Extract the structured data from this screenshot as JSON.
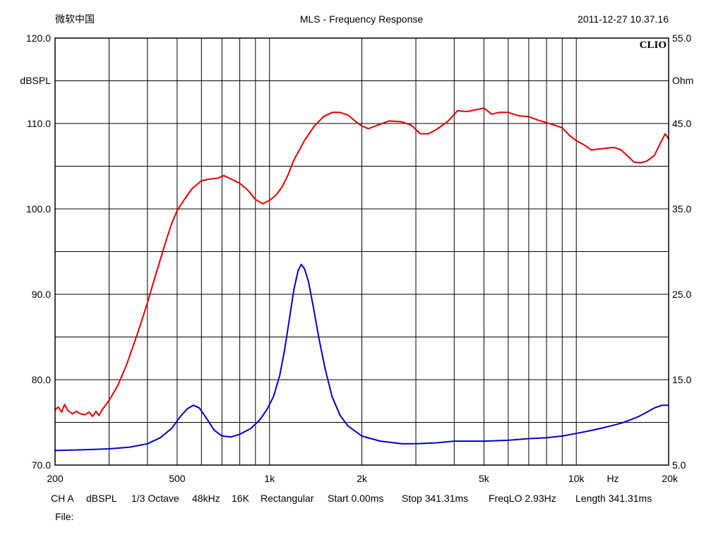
{
  "header": {
    "app_name": "微软中国",
    "title": "MLS - Frequency Response",
    "timestamp": "2011-12-27 10.37.16",
    "brand": "CLIO"
  },
  "footer": {
    "channel": "CH A",
    "unit": "dBSPL",
    "smoothing": "1/3 Octave",
    "sample_rate": "48kHz",
    "size": "16K",
    "window": "Rectangular",
    "start": "Start 0.00ms",
    "stop": "Stop 341.31ms",
    "freqlo": "FreqLO 2.93Hz",
    "length": "Length 341.31ms",
    "file_label": "File:"
  },
  "colors": {
    "spl": "#e00000",
    "impedance": "#0000cc",
    "grid": "#000000"
  },
  "chart_data": {
    "type": "line",
    "title": "MLS - Frequency Response",
    "x_scale": "log",
    "xlim": [
      200,
      20000
    ],
    "x_unit_label": "Hz",
    "x_ticks": [
      {
        "value": 200,
        "label": "200"
      },
      {
        "value": 500,
        "label": "500"
      },
      {
        "value": 1000,
        "label": "1k"
      },
      {
        "value": 2000,
        "label": "2k"
      },
      {
        "value": 5000,
        "label": "5k"
      },
      {
        "value": 10000,
        "label": "10k"
      },
      {
        "value": 20000,
        "label": "20k"
      }
    ],
    "y_left": {
      "label": "dBSPL",
      "lim": [
        70,
        120
      ],
      "ticks": [
        {
          "value": 70,
          "label": "70.0"
        },
        {
          "value": 80,
          "label": "80.0"
        },
        {
          "value": 90,
          "label": "90.0"
        },
        {
          "value": 100,
          "label": "100.0"
        },
        {
          "value": 110,
          "label": "110.0"
        },
        {
          "value": 120,
          "label": "120.0"
        }
      ]
    },
    "y_right": {
      "label": "Ohm",
      "lim": [
        5,
        55
      ],
      "ticks": [
        {
          "value": 5,
          "label": "5.0"
        },
        {
          "value": 15,
          "label": "15.0"
        },
        {
          "value": 25,
          "label": "25.0"
        },
        {
          "value": 35,
          "label": "35.0"
        },
        {
          "value": 45,
          "label": "45.0"
        },
        {
          "value": 55,
          "label": "55.0"
        }
      ]
    },
    "grid": true,
    "series": [
      {
        "axis": "left",
        "color": "#e00000",
        "points": [
          [
            200,
            76.5
          ],
          [
            205,
            76.8
          ],
          [
            210,
            76.2
          ],
          [
            215,
            77.1
          ],
          [
            220,
            76.4
          ],
          [
            228,
            76.0
          ],
          [
            235,
            76.3
          ],
          [
            242,
            76.0
          ],
          [
            250,
            75.9
          ],
          [
            258,
            76.2
          ],
          [
            265,
            75.7
          ],
          [
            272,
            76.3
          ],
          [
            278,
            75.8
          ],
          [
            285,
            76.5
          ],
          [
            295,
            77.2
          ],
          [
            305,
            78.0
          ],
          [
            320,
            79.3
          ],
          [
            340,
            81.5
          ],
          [
            360,
            84.0
          ],
          [
            380,
            86.5
          ],
          [
            400,
            89.0
          ],
          [
            420,
            91.6
          ],
          [
            440,
            94.0
          ],
          [
            460,
            96.3
          ],
          [
            480,
            98.3
          ],
          [
            500,
            99.8
          ],
          [
            530,
            101.2
          ],
          [
            560,
            102.4
          ],
          [
            600,
            103.3
          ],
          [
            640,
            103.5
          ],
          [
            680,
            103.6
          ],
          [
            710,
            103.9
          ],
          [
            750,
            103.5
          ],
          [
            800,
            103.0
          ],
          [
            850,
            102.2
          ],
          [
            900,
            101.1
          ],
          [
            950,
            100.6
          ],
          [
            1000,
            101.0
          ],
          [
            1050,
            101.6
          ],
          [
            1100,
            102.6
          ],
          [
            1150,
            104.0
          ],
          [
            1200,
            105.7
          ],
          [
            1300,
            108.0
          ],
          [
            1400,
            109.7
          ],
          [
            1500,
            110.8
          ],
          [
            1600,
            111.3
          ],
          [
            1700,
            111.3
          ],
          [
            1800,
            111.0
          ],
          [
            1900,
            110.3
          ],
          [
            2000,
            109.7
          ],
          [
            2100,
            109.4
          ],
          [
            2250,
            109.8
          ],
          [
            2450,
            110.3
          ],
          [
            2700,
            110.2
          ],
          [
            2900,
            109.8
          ],
          [
            3100,
            108.8
          ],
          [
            3300,
            108.8
          ],
          [
            3500,
            109.3
          ],
          [
            3800,
            110.2
          ],
          [
            4100,
            111.5
          ],
          [
            4400,
            111.4
          ],
          [
            4700,
            111.6
          ],
          [
            5000,
            111.8
          ],
          [
            5300,
            111.1
          ],
          [
            5600,
            111.3
          ],
          [
            6000,
            111.3
          ],
          [
            6500,
            110.9
          ],
          [
            7000,
            110.8
          ],
          [
            7500,
            110.4
          ],
          [
            8000,
            110.1
          ],
          [
            8500,
            109.8
          ],
          [
            9000,
            109.5
          ],
          [
            9500,
            108.6
          ],
          [
            10000,
            108.0
          ],
          [
            10600,
            107.5
          ],
          [
            11200,
            106.9
          ],
          [
            11800,
            107.0
          ],
          [
            12500,
            107.1
          ],
          [
            13300,
            107.2
          ],
          [
            14000,
            106.9
          ],
          [
            14700,
            106.2
          ],
          [
            15400,
            105.5
          ],
          [
            16200,
            105.4
          ],
          [
            17000,
            105.6
          ],
          [
            18000,
            106.3
          ],
          [
            18800,
            107.7
          ],
          [
            19500,
            108.8
          ],
          [
            20000,
            108.2
          ]
        ]
      },
      {
        "axis": "right",
        "color": "#0000cc",
        "points": [
          [
            200,
            6.7
          ],
          [
            250,
            6.8
          ],
          [
            300,
            6.9
          ],
          [
            350,
            7.1
          ],
          [
            400,
            7.5
          ],
          [
            440,
            8.2
          ],
          [
            480,
            9.3
          ],
          [
            510,
            10.6
          ],
          [
            540,
            11.6
          ],
          [
            565,
            12.0
          ],
          [
            590,
            11.7
          ],
          [
            620,
            10.6
          ],
          [
            660,
            9.1
          ],
          [
            700,
            8.4
          ],
          [
            750,
            8.3
          ],
          [
            800,
            8.6
          ],
          [
            870,
            9.3
          ],
          [
            930,
            10.3
          ],
          [
            980,
            11.5
          ],
          [
            1030,
            13.0
          ],
          [
            1080,
            15.5
          ],
          [
            1120,
            18.5
          ],
          [
            1160,
            22.0
          ],
          [
            1200,
            25.5
          ],
          [
            1240,
            27.8
          ],
          [
            1270,
            28.5
          ],
          [
            1300,
            28.0
          ],
          [
            1340,
            26.5
          ],
          [
            1390,
            23.5
          ],
          [
            1450,
            19.8
          ],
          [
            1520,
            16.2
          ],
          [
            1600,
            13.0
          ],
          [
            1700,
            10.8
          ],
          [
            1800,
            9.6
          ],
          [
            2000,
            8.4
          ],
          [
            2300,
            7.8
          ],
          [
            2700,
            7.5
          ],
          [
            3000,
            7.5
          ],
          [
            3500,
            7.6
          ],
          [
            4000,
            7.8
          ],
          [
            5000,
            7.8
          ],
          [
            6000,
            7.9
          ],
          [
            7000,
            8.1
          ],
          [
            8000,
            8.2
          ],
          [
            9000,
            8.4
          ],
          [
            10000,
            8.7
          ],
          [
            11000,
            9.0
          ],
          [
            12000,
            9.3
          ],
          [
            13000,
            9.6
          ],
          [
            14000,
            9.9
          ],
          [
            15000,
            10.3
          ],
          [
            16000,
            10.7
          ],
          [
            17000,
            11.2
          ],
          [
            18000,
            11.7
          ],
          [
            19000,
            12.0
          ],
          [
            20000,
            12.0
          ]
        ]
      }
    ]
  }
}
